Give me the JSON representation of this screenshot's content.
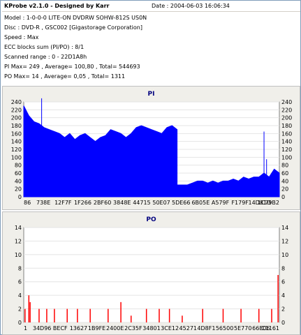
{
  "header": {
    "title": "KProbe v2.1.0 - Designed by Karr",
    "date": "Date : 2004-06-03 16:06:34"
  },
  "info_lines": [
    "Model : 1-0-0-0 LITE-ON DVDRW SOHW-812S  US0N",
    "Disc : DVD-R ,  GSC002 [Gigastorage Corporation]",
    "Speed : Max",
    "ECC blocks sum (PI/PO) : 8/1",
    "Scanned range : 0 - 22D1A8h",
    "PI Max= 249 , Average= 100,80 , Total= 544693",
    "PO Max= 14 , Average= 0,05 , Total= 1311"
  ],
  "chart_data": [
    {
      "type": "area",
      "title": "PI",
      "color": "#0000ff",
      "ylim": [
        0,
        240
      ],
      "yticks": [
        0,
        20,
        40,
        60,
        80,
        100,
        120,
        140,
        160,
        180,
        200,
        220,
        240
      ],
      "xticklabels": [
        "86",
        "738E",
        "12F7F",
        "1F266",
        "2BF60",
        "3848E",
        "44715",
        "50E07",
        "5DE66",
        "6B05E",
        "A579F",
        "F179F",
        "14D81D",
        "1C79B2"
      ],
      "series": [
        {
          "x_fraction": [
            0.0,
            0.02,
            0.04,
            0.06,
            0.08,
            0.1,
            0.12,
            0.14,
            0.16,
            0.18,
            0.2,
            0.22,
            0.24,
            0.26,
            0.28,
            0.3,
            0.32,
            0.34,
            0.36,
            0.38,
            0.4,
            0.42,
            0.44,
            0.46,
            0.48,
            0.5,
            0.52,
            0.54,
            0.56,
            0.58,
            0.6,
            0.6,
            0.62,
            0.64,
            0.66,
            0.68,
            0.7,
            0.72,
            0.74,
            0.76,
            0.78,
            0.8,
            0.82,
            0.84,
            0.86,
            0.88,
            0.9,
            0.92,
            0.94,
            0.96,
            0.98,
            1.0
          ],
          "values": [
            230,
            205,
            190,
            185,
            175,
            170,
            165,
            160,
            150,
            160,
            145,
            155,
            160,
            150,
            140,
            150,
            155,
            170,
            165,
            160,
            150,
            160,
            175,
            180,
            175,
            170,
            165,
            160,
            175,
            180,
            170,
            30,
            30,
            30,
            35,
            40,
            40,
            35,
            40,
            35,
            40,
            40,
            45,
            40,
            50,
            45,
            50,
            50,
            60,
            50,
            70,
            60
          ]
        }
      ],
      "spikes": [
        {
          "x_fraction": 0.07,
          "value": 249
        },
        {
          "x_fraction": 0.94,
          "value": 165
        },
        {
          "x_fraction": 0.95,
          "value": 95
        }
      ]
    },
    {
      "type": "bar",
      "title": "PO",
      "color": "#ff0000",
      "ylim": [
        0,
        14
      ],
      "yticks": [
        0,
        2,
        4,
        6,
        8,
        10,
        12,
        14
      ],
      "xticklabels": [
        "1",
        "34D96",
        "BECF",
        "13627",
        "1B9FE",
        "2400E",
        "2C35F",
        "34801",
        "3CE12",
        "45271",
        "4D8F1",
        "56500",
        "5E770",
        "66E06",
        "C1161"
      ],
      "series": [
        {
          "x_fraction": [
            0.005,
            0.02,
            0.025,
            0.06,
            0.09,
            0.12,
            0.17,
            0.21,
            0.26,
            0.33,
            0.38,
            0.42,
            0.48,
            0.53,
            0.57,
            0.62,
            0.7,
            0.78,
            0.85,
            0.92,
            0.97,
            0.995
          ],
          "values": [
            2,
            4,
            3,
            2,
            2,
            2,
            2,
            2,
            2,
            2,
            3,
            1,
            2,
            2,
            2,
            1,
            2,
            2,
            2,
            2,
            2,
            7
          ]
        }
      ]
    }
  ]
}
